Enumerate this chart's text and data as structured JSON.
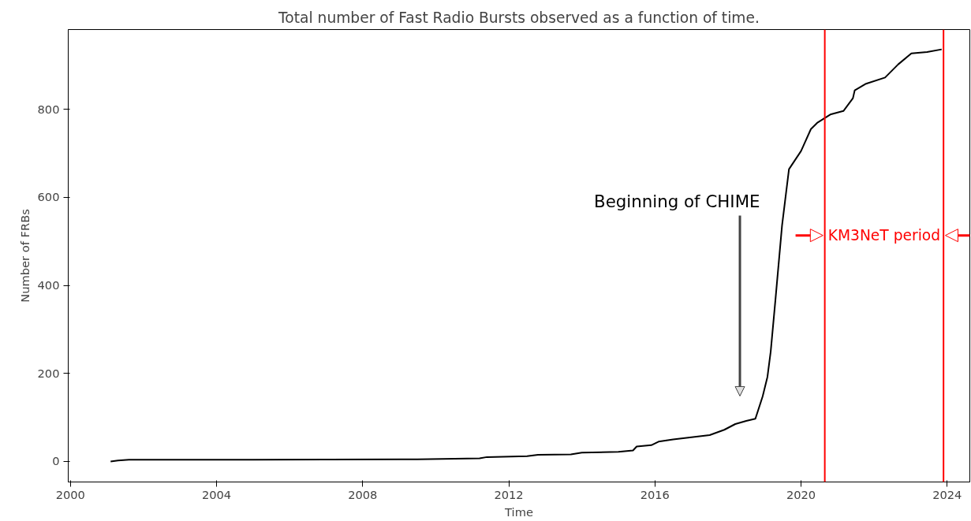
{
  "chart_data": {
    "type": "line",
    "title": "Total number of Fast Radio Bursts observed as a function of time.",
    "xlabel": "Time",
    "ylabel": "Number of FRBs",
    "x": [
      2001.1,
      2001.3,
      2001.6,
      2005,
      2009.5,
      2011.2,
      2011.4,
      2012.5,
      2012.8,
      2013.7,
      2014.0,
      2015.0,
      2015.4,
      2015.5,
      2015.9,
      2016.1,
      2016.5,
      2017.0,
      2017.5,
      2017.9,
      2018.2,
      2018.5,
      2018.75,
      2018.95,
      2019.08,
      2019.17,
      2019.3,
      2019.48,
      2019.67,
      2020.0,
      2020.27,
      2020.44,
      2020.8,
      2021.16,
      2021.42,
      2021.47,
      2021.78,
      2022.3,
      2022.66,
      2023.02,
      2023.45,
      2023.85
    ],
    "series": [
      {
        "color": "#000000",
        "values": [
          0,
          2,
          4,
          4,
          5,
          7,
          10,
          12,
          15,
          16,
          20,
          22,
          25,
          34,
          37,
          45,
          50,
          55,
          60,
          72,
          85,
          92,
          97,
          148,
          192,
          250,
          368,
          536,
          664,
          705,
          755,
          769,
          788,
          796,
          825,
          843,
          858,
          872,
          902,
          927,
          930,
          936
        ]
      }
    ],
    "xlim": [
      1999.94,
      2024.62
    ],
    "ylim": [
      -46.6,
      981
    ],
    "xticks": [
      2000,
      2004,
      2008,
      2012,
      2016,
      2020,
      2024
    ],
    "yticks": [
      0,
      200,
      400,
      600,
      800
    ],
    "grid": false,
    "ref_lines": [
      {
        "axis": "x",
        "value": 2020.65,
        "color": "#ff0000"
      },
      {
        "axis": "x",
        "value": 2023.9,
        "color": "#ff0000"
      }
    ],
    "annotations": [
      "Beginning of CHIME",
      "KM3NeT period"
    ]
  }
}
